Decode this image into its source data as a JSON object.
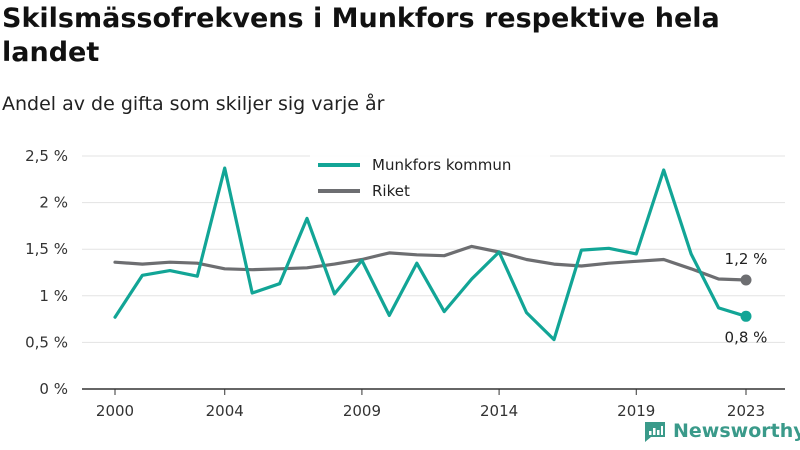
{
  "title": "Skilsmässofrekvens i Munkfors respektive hela landet",
  "subtitle": "Andel av de gifta som skiljer sig varje år",
  "brand": "Newsworthy",
  "colors": {
    "munkfors": "#12a596",
    "riket": "#6d6e71",
    "grid": "#e3e3e3",
    "axis": "#333333"
  },
  "chart_data": {
    "type": "line",
    "x": [
      2000,
      2001,
      2002,
      2003,
      2004,
      2005,
      2006,
      2007,
      2008,
      2009,
      2010,
      2011,
      2012,
      2013,
      2014,
      2015,
      2016,
      2017,
      2018,
      2019,
      2020,
      2021,
      2022,
      2023
    ],
    "xticks": [
      2000,
      2004,
      2009,
      2014,
      2019,
      2023
    ],
    "xtick_labels": [
      "2000",
      "2004",
      "2009",
      "2014",
      "2019",
      "2023"
    ],
    "ylim": [
      0,
      2.5
    ],
    "yticks": [
      0,
      0.5,
      1,
      1.5,
      2,
      2.5
    ],
    "ytick_labels": [
      "0 %",
      "0,5 %",
      "1 %",
      "1,5 %",
      "2 %",
      "2,5 %"
    ],
    "grid": true,
    "legend_position": "top-center",
    "series": [
      {
        "name": "Munkfors kommun",
        "color": "#12a596",
        "values": [
          0.77,
          1.22,
          1.27,
          1.21,
          2.37,
          1.03,
          1.13,
          1.83,
          1.02,
          1.38,
          0.79,
          1.35,
          0.83,
          1.18,
          1.47,
          0.82,
          0.53,
          1.49,
          1.51,
          1.45,
          2.35,
          1.45,
          0.87,
          0.78
        ],
        "end_label": "0,8 %"
      },
      {
        "name": "Riket",
        "color": "#6d6e71",
        "values": [
          1.36,
          1.34,
          1.36,
          1.35,
          1.29,
          1.28,
          1.29,
          1.3,
          1.34,
          1.39,
          1.46,
          1.44,
          1.43,
          1.53,
          1.47,
          1.39,
          1.34,
          1.32,
          1.35,
          1.37,
          1.39,
          1.29,
          1.18,
          1.17
        ],
        "end_label": "1,2 %"
      }
    ]
  }
}
